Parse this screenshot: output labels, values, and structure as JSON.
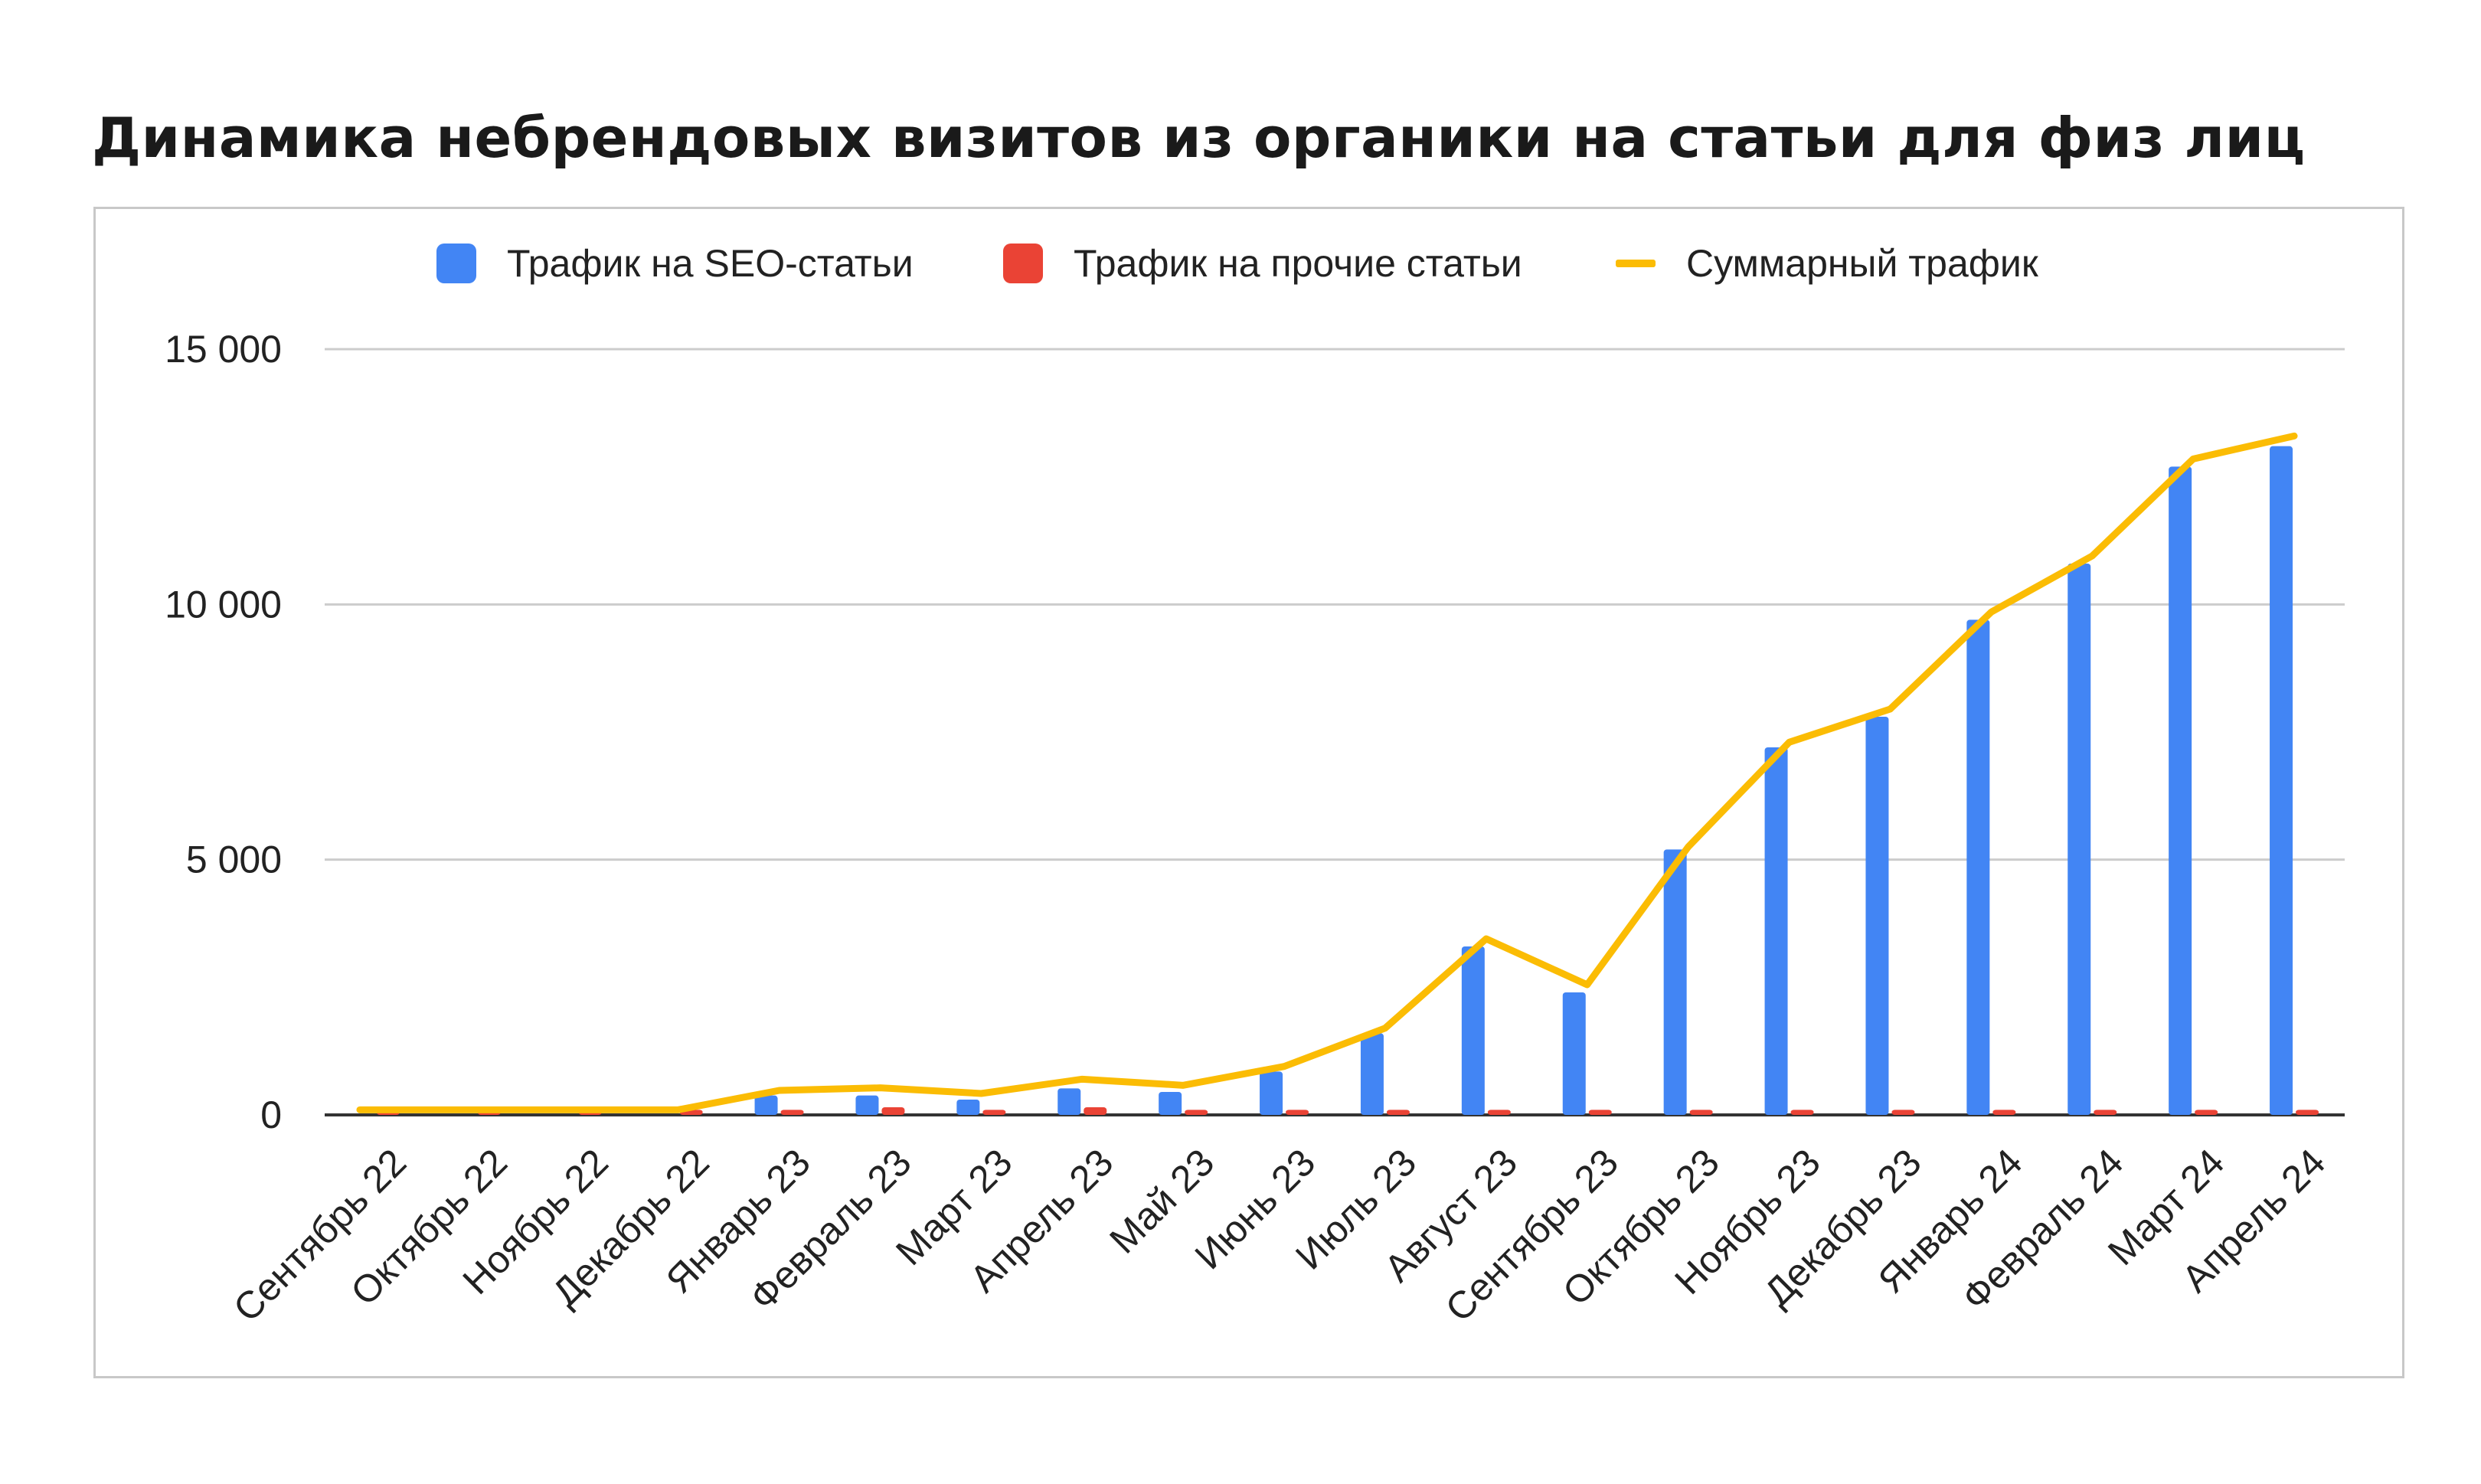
{
  "chart_data": {
    "type": "bar",
    "title": "Динамика небрендовых визитов из органики на статьи для физ лиц",
    "categories": [
      "Сентябрь 22",
      "Октябрь 22",
      "Ноябрь 22",
      "Декабрь 22",
      "Январь 23",
      "Февраль 23",
      "Март 23",
      "Апрель 23",
      "Май 23",
      "Июнь 23",
      "Июль 23",
      "Август 23",
      "Сентябрь 23",
      "Октябрь 23",
      "Ноябрь 23",
      "Декабрь 23",
      "Январь 24",
      "Февраль 24",
      "Март 24",
      "Апрель 24"
    ],
    "series": [
      {
        "name": "Трафик на SEO-статьи",
        "kind": "bar",
        "color": "#4285F4",
        "values": [
          0,
          0,
          0,
          0,
          380,
          380,
          300,
          520,
          450,
          850,
          1600,
          3300,
          2400,
          5200,
          7200,
          7800,
          9700,
          10800,
          12700,
          13100
        ]
      },
      {
        "name": "Трафик на прочие статьи",
        "kind": "bar",
        "color": "#EA4335",
        "values": [
          100,
          100,
          100,
          100,
          100,
          150,
          100,
          150,
          100,
          100,
          100,
          100,
          100,
          100,
          100,
          100,
          100,
          100,
          100,
          100
        ]
      },
      {
        "name": "Суммарный трафик",
        "kind": "line",
        "color": "#FBBC04",
        "values": [
          100,
          100,
          100,
          100,
          480,
          530,
          420,
          700,
          580,
          950,
          1700,
          3450,
          2550,
          5250,
          7300,
          7950,
          9850,
          10950,
          12850,
          13300
        ]
      }
    ],
    "y_ticks": [
      "0",
      "5 000",
      "10 000",
      "15 000"
    ],
    "ylim": [
      0,
      15000
    ],
    "xlabel": "",
    "ylabel": "",
    "grid": true,
    "legend_position": "top-center"
  }
}
